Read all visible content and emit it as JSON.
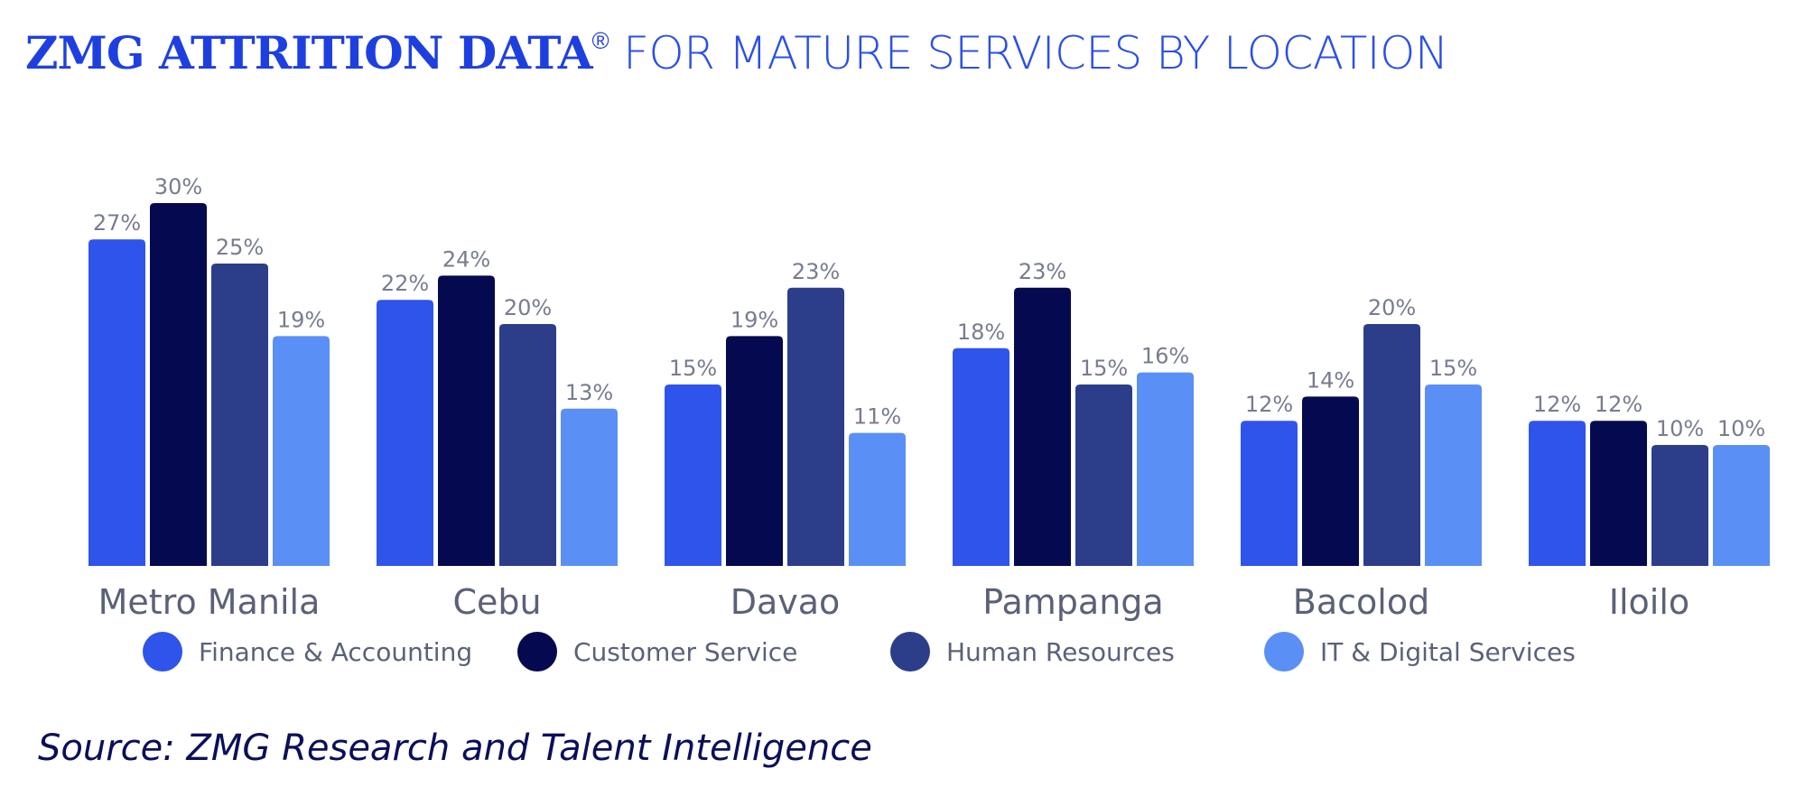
{
  "header": {
    "title_bold": "ZMG ATTRITION DATA",
    "title_mark": "®",
    "title_rest": " FOR MATURE SERVICES BY LOCATION"
  },
  "source": "Source: ZMG Research and Talent Intelligence",
  "colors": {
    "title": "#1e3fe0",
    "finance": "#2f54eb",
    "customer": "#05094f",
    "hr": "#2c3e8a",
    "it": "#5a90f5",
    "label": "#777c8f",
    "category": "#5a6178",
    "source": "#0b0f5a"
  },
  "chart_data": {
    "type": "bar",
    "categories": [
      "Metro Manila",
      "Cebu",
      "Davao",
      "Pampanga",
      "Bacolod",
      "Iloilo"
    ],
    "series": [
      {
        "name": "Finance & Accounting",
        "color": "#2f54eb",
        "values": [
          27,
          22,
          15,
          18,
          12,
          12
        ]
      },
      {
        "name": "Customer Service",
        "color": "#05094f",
        "values": [
          30,
          24,
          19,
          23,
          14,
          12
        ]
      },
      {
        "name": "Human Resources",
        "color": "#2c3e8a",
        "values": [
          25,
          20,
          23,
          15,
          20,
          10
        ]
      },
      {
        "name": "IT & Digital Services",
        "color": "#5a90f5",
        "values": [
          19,
          13,
          11,
          16,
          15,
          10
        ]
      }
    ],
    "value_suffix": "%",
    "ylim": [
      0,
      30
    ],
    "legend": "bottom",
    "grid": false
  }
}
